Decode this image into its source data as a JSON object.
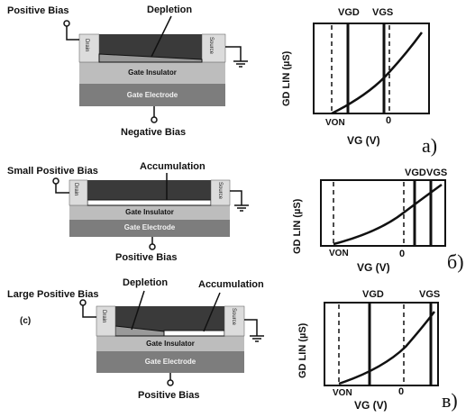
{
  "panel_a": {
    "left_label": "Positive Bias",
    "top_label": "Depletion",
    "bottom_label": "Negative Bias",
    "drain": "Drain",
    "source": "Source",
    "insulator": "Gate Insulator",
    "electrode": "Gate Electrode",
    "letter": "a)",
    "vgd_label": "VGD",
    "vgs_label": "VGS",
    "y_label": "GD LIN (µS)",
    "x_label": "VG (V)",
    "von_label": "VON",
    "zero_label": "0"
  },
  "panel_b": {
    "left_label": "Small Positive Bias",
    "top_label": "Accumulation",
    "bottom_label": "Positive Bias",
    "drain": "Drain",
    "source": "Source",
    "insulator": "Gate Insulator",
    "electrode": "Gate Electrode",
    "letter": "б)",
    "vgd_label": "VGD",
    "vgs_label": "VGS",
    "y_label": "GD LIN (µS)",
    "x_label": "VG (V)",
    "von_label": "VON",
    "zero_label": "0"
  },
  "panel_c": {
    "tag": "(c)",
    "left_label": "Large Positive Bias",
    "depletion_label": "Depletion",
    "accumulation_label": "Accumulation",
    "bottom_label": "Positive Bias",
    "drain": "Drain",
    "source": "Source",
    "insulator": "Gate Insulator",
    "electrode": "Gate Electrode",
    "letter": "в)",
    "vgd_label": "VGD",
    "vgs_label": "VGS",
    "y_label": "GD LIN (µS)",
    "x_label": "VG (V)",
    "von_label": "VON",
    "zero_label": "0"
  }
}
